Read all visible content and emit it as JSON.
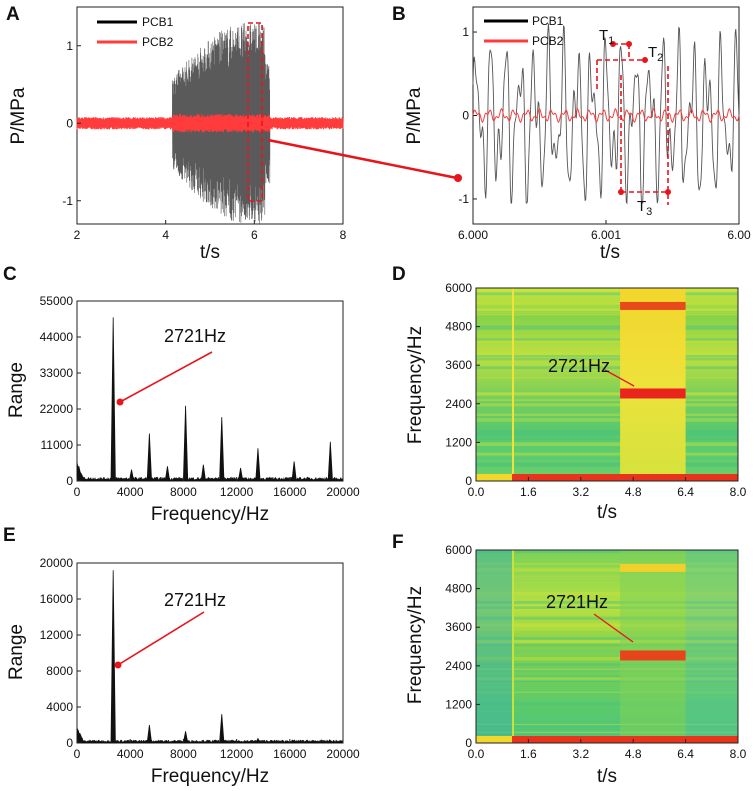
{
  "colors": {
    "pcb1": "#000000",
    "pcb2": "#ff3b3b",
    "red": "#e8141c",
    "gray": "#555555"
  },
  "chart_data": [
    {
      "panel": "A",
      "type": "line",
      "xlabel": "t/s",
      "ylabel": "P/MPa",
      "xlim": [
        2,
        8
      ],
      "ylim": [
        -1.3,
        1.5
      ],
      "xticks": [
        "2",
        "4",
        "6",
        "8"
      ],
      "yticks": [
        "-1",
        "0",
        "1"
      ],
      "legend": [
        "PCB1",
        "PCB2"
      ],
      "series": [
        {
          "name": "PCB1",
          "burst_start_s": 4.15,
          "burst_end_s": 6.35,
          "peak_amplitude_MPa": 1.3,
          "baseline_amplitude_MPa": 0.05
        },
        {
          "name": "PCB2",
          "amplitude_MPa": 0.08,
          "burst_amplitude_MPa": 0.12
        }
      ],
      "zoom_window_s": [
        5.95,
        6.15
      ]
    },
    {
      "panel": "B",
      "type": "line",
      "xlabel": "t/s",
      "ylabel": "P/MPa",
      "xlim": [
        6.0,
        6.002
      ],
      "ylim": [
        -1.3,
        1.3
      ],
      "xticks": [
        "6.000",
        "6.001",
        "6.00"
      ],
      "yticks": [
        "-1",
        "0",
        "1"
      ],
      "legend": [
        "PCB1",
        "PCB2"
      ],
      "annotations": [
        {
          "label": "T",
          "sub": "1"
        },
        {
          "label": "T",
          "sub": "2"
        },
        {
          "label": "T",
          "sub": "3"
        }
      ]
    },
    {
      "panel": "C",
      "type": "line",
      "xlabel": "Frequency/Hz",
      "ylabel": "Range",
      "xlim": [
        0,
        20000
      ],
      "ylim": [
        0,
        55000
      ],
      "xticks": [
        "0",
        "4000",
        "8000",
        "12000",
        "16000",
        "20000"
      ],
      "yticks": [
        "0",
        "11000",
        "22000",
        "33000",
        "44000",
        "55000"
      ],
      "annotation": "2721Hz",
      "peaks": [
        {
          "f": 2721,
          "v": 50000
        },
        {
          "f": 5442,
          "v": 14500
        },
        {
          "f": 8163,
          "v": 23000
        },
        {
          "f": 10884,
          "v": 19500
        },
        {
          "f": 13605,
          "v": 10000
        },
        {
          "f": 16326,
          "v": 6000
        },
        {
          "f": 19047,
          "v": 12000
        },
        {
          "f": 4100,
          "v": 3500
        },
        {
          "f": 6800,
          "v": 4500
        },
        {
          "f": 9500,
          "v": 5000
        },
        {
          "f": 12300,
          "v": 4000
        }
      ]
    },
    {
      "panel": "D",
      "type": "heatmap",
      "xlabel": "t/s",
      "ylabel": "Frequency/Hz",
      "xlim": [
        0,
        8
      ],
      "ylim": [
        0,
        6000
      ],
      "xticks": [
        "0.0",
        "1.6",
        "3.2",
        "4.8",
        "6.4",
        "8.0"
      ],
      "yticks": [
        "0",
        "1200",
        "2400",
        "3600",
        "4800",
        "6000"
      ],
      "annotation": "2721Hz",
      "bands_hz": [
        2721,
        5442
      ],
      "event_window_s": [
        4.4,
        6.4
      ]
    },
    {
      "panel": "E",
      "type": "line",
      "xlabel": "Frequency/Hz",
      "ylabel": "Range",
      "xlim": [
        0,
        20000
      ],
      "ylim": [
        0,
        20000
      ],
      "xticks": [
        "0",
        "4000",
        "8000",
        "12000",
        "16000",
        "20000"
      ],
      "yticks": [
        "0",
        "4000",
        "8000",
        "12000",
        "16000",
        "20000"
      ],
      "annotation": "2721Hz",
      "peaks": [
        {
          "f": 2721,
          "v": 19200
        },
        {
          "f": 5442,
          "v": 2000
        },
        {
          "f": 8163,
          "v": 1300
        },
        {
          "f": 10884,
          "v": 3200
        },
        {
          "f": 13605,
          "v": 500
        },
        {
          "f": 19000,
          "v": 350
        }
      ]
    },
    {
      "panel": "F",
      "type": "heatmap",
      "xlabel": "t/s",
      "ylabel": "Frequency/Hz",
      "xlim": [
        0,
        8
      ],
      "ylim": [
        0,
        6000
      ],
      "xticks": [
        "0.0",
        "1.6",
        "3.2",
        "4.8",
        "6.4",
        "8.0"
      ],
      "yticks": [
        "0",
        "1200",
        "2400",
        "3600",
        "4800",
        "6000"
      ],
      "annotation": "2721Hz",
      "bands_hz": [
        2721,
        5442
      ],
      "event_window_s": [
        4.4,
        6.4
      ]
    }
  ]
}
